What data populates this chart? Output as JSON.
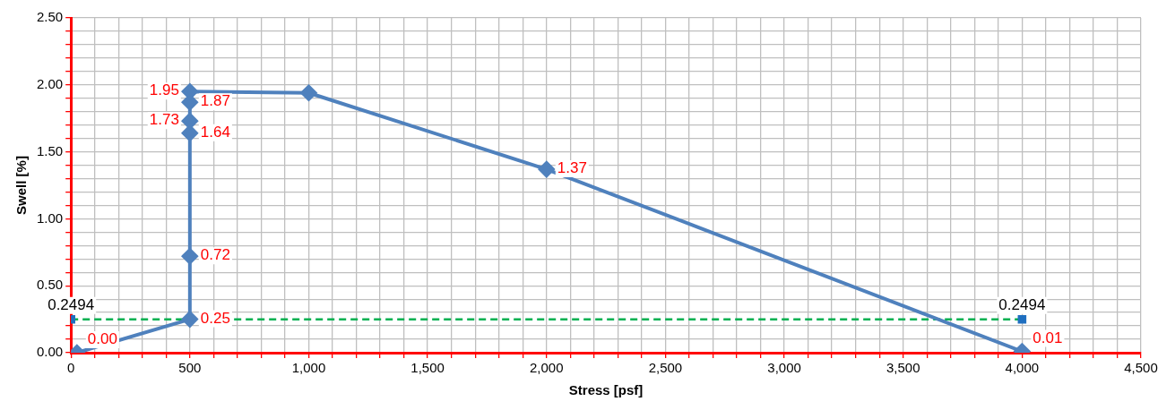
{
  "chart_data": {
    "type": "line",
    "xlabel": "Stress [psf]",
    "ylabel": "Swell [%]",
    "xlim": [
      0,
      4500
    ],
    "ylim": [
      0,
      2.5
    ],
    "xticks": [
      {
        "value": 0,
        "label": "0"
      },
      {
        "value": 100,
        "label": null
      },
      {
        "value": 200,
        "label": null
      },
      {
        "value": 300,
        "label": null
      },
      {
        "value": 400,
        "label": null
      },
      {
        "value": 500,
        "label": "500"
      },
      {
        "value": 600,
        "label": null
      },
      {
        "value": 700,
        "label": null
      },
      {
        "value": 800,
        "label": null
      },
      {
        "value": 900,
        "label": null
      },
      {
        "value": 1000,
        "label": "1,000"
      },
      {
        "value": 1100,
        "label": null
      },
      {
        "value": 1200,
        "label": null
      },
      {
        "value": 1300,
        "label": null
      },
      {
        "value": 1400,
        "label": null
      },
      {
        "value": 1500,
        "label": "1,500"
      },
      {
        "value": 1600,
        "label": null
      },
      {
        "value": 1700,
        "label": null
      },
      {
        "value": 1800,
        "label": null
      },
      {
        "value": 1900,
        "label": null
      },
      {
        "value": 2000,
        "label": "2,000"
      },
      {
        "value": 2100,
        "label": null
      },
      {
        "value": 2200,
        "label": null
      },
      {
        "value": 2300,
        "label": null
      },
      {
        "value": 2400,
        "label": null
      },
      {
        "value": 2500,
        "label": "2,500"
      },
      {
        "value": 2600,
        "label": null
      },
      {
        "value": 2700,
        "label": null
      },
      {
        "value": 2800,
        "label": null
      },
      {
        "value": 2900,
        "label": null
      },
      {
        "value": 3000,
        "label": "3,000"
      },
      {
        "value": 3100,
        "label": null
      },
      {
        "value": 3200,
        "label": null
      },
      {
        "value": 3300,
        "label": null
      },
      {
        "value": 3400,
        "label": null
      },
      {
        "value": 3500,
        "label": "3,500"
      },
      {
        "value": 3600,
        "label": null
      },
      {
        "value": 3700,
        "label": null
      },
      {
        "value": 3800,
        "label": null
      },
      {
        "value": 3900,
        "label": null
      },
      {
        "value": 4000,
        "label": "4,000"
      },
      {
        "value": 4100,
        "label": null
      },
      {
        "value": 4200,
        "label": null
      },
      {
        "value": 4300,
        "label": null
      },
      {
        "value": 4400,
        "label": null
      },
      {
        "value": 4500,
        "label": "4,500"
      }
    ],
    "yticks": [
      {
        "value": 0,
        "label": "0.00"
      },
      {
        "value": 0.1,
        "label": null
      },
      {
        "value": 0.2,
        "label": null
      },
      {
        "value": 0.3,
        "label": null
      },
      {
        "value": 0.4,
        "label": null
      },
      {
        "value": 0.5,
        "label": "0.50"
      },
      {
        "value": 0.6,
        "label": null
      },
      {
        "value": 0.7,
        "label": null
      },
      {
        "value": 0.8,
        "label": null
      },
      {
        "value": 0.9,
        "label": null
      },
      {
        "value": 1,
        "label": "1.00"
      },
      {
        "value": 1.1,
        "label": null
      },
      {
        "value": 1.2,
        "label": null
      },
      {
        "value": 1.3,
        "label": null
      },
      {
        "value": 1.4,
        "label": null
      },
      {
        "value": 1.5,
        "label": "1.50"
      },
      {
        "value": 1.6,
        "label": null
      },
      {
        "value": 1.7,
        "label": null
      },
      {
        "value": 1.8,
        "label": null
      },
      {
        "value": 1.9,
        "label": null
      },
      {
        "value": 2,
        "label": "2.00"
      },
      {
        "value": 2.1,
        "label": null
      },
      {
        "value": 2.2,
        "label": null
      },
      {
        "value": 2.3,
        "label": null
      },
      {
        "value": 2.4,
        "label": null
      },
      {
        "value": 2.5,
        "label": "2.50"
      }
    ],
    "grid": true,
    "legend": false,
    "series": [
      {
        "color": "#4f81bd",
        "marker": "diamond",
        "x": [
          25,
          500,
          500,
          500,
          500,
          500,
          500,
          1000,
          2000,
          4000
        ],
        "values": [
          0,
          0.25,
          0.72,
          1.64,
          1.73,
          1.87,
          1.95,
          1.94,
          1.37,
          0.01
        ],
        "value_labels": [
          "0.00",
          "0.25",
          "0.72",
          "1.64",
          "1.73",
          "1.87",
          "1.95",
          null,
          "1.37",
          "0.01"
        ]
      },
      {
        "color": "#00b050",
        "marker": "square",
        "line_style": "dashed",
        "x": [
          0,
          4000
        ],
        "values": [
          0.2494,
          0.2494
        ],
        "value_labels": [
          "0.2494",
          "0.2494"
        ]
      }
    ]
  }
}
